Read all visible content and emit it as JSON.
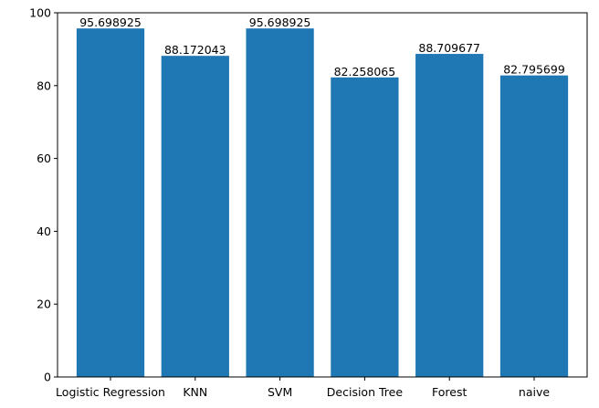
{
  "chart_data": {
    "type": "bar",
    "categories": [
      "Logistic Regression",
      "KNN",
      "SVM",
      "Decision Tree",
      "Forest",
      "naive"
    ],
    "values": [
      95.698925,
      88.172043,
      95.698925,
      82.258065,
      88.709677,
      82.795699
    ],
    "value_labels": [
      "95.698925",
      "88.172043",
      "95.698925",
      "82.258065",
      "88.709677",
      "82.795699"
    ],
    "title": "",
    "xlabel": "",
    "ylabel": "",
    "ylim": [
      0,
      100
    ],
    "yticks": [
      0,
      20,
      40,
      60,
      80,
      100
    ],
    "grid": false,
    "bar_color": "#1f77b4"
  }
}
